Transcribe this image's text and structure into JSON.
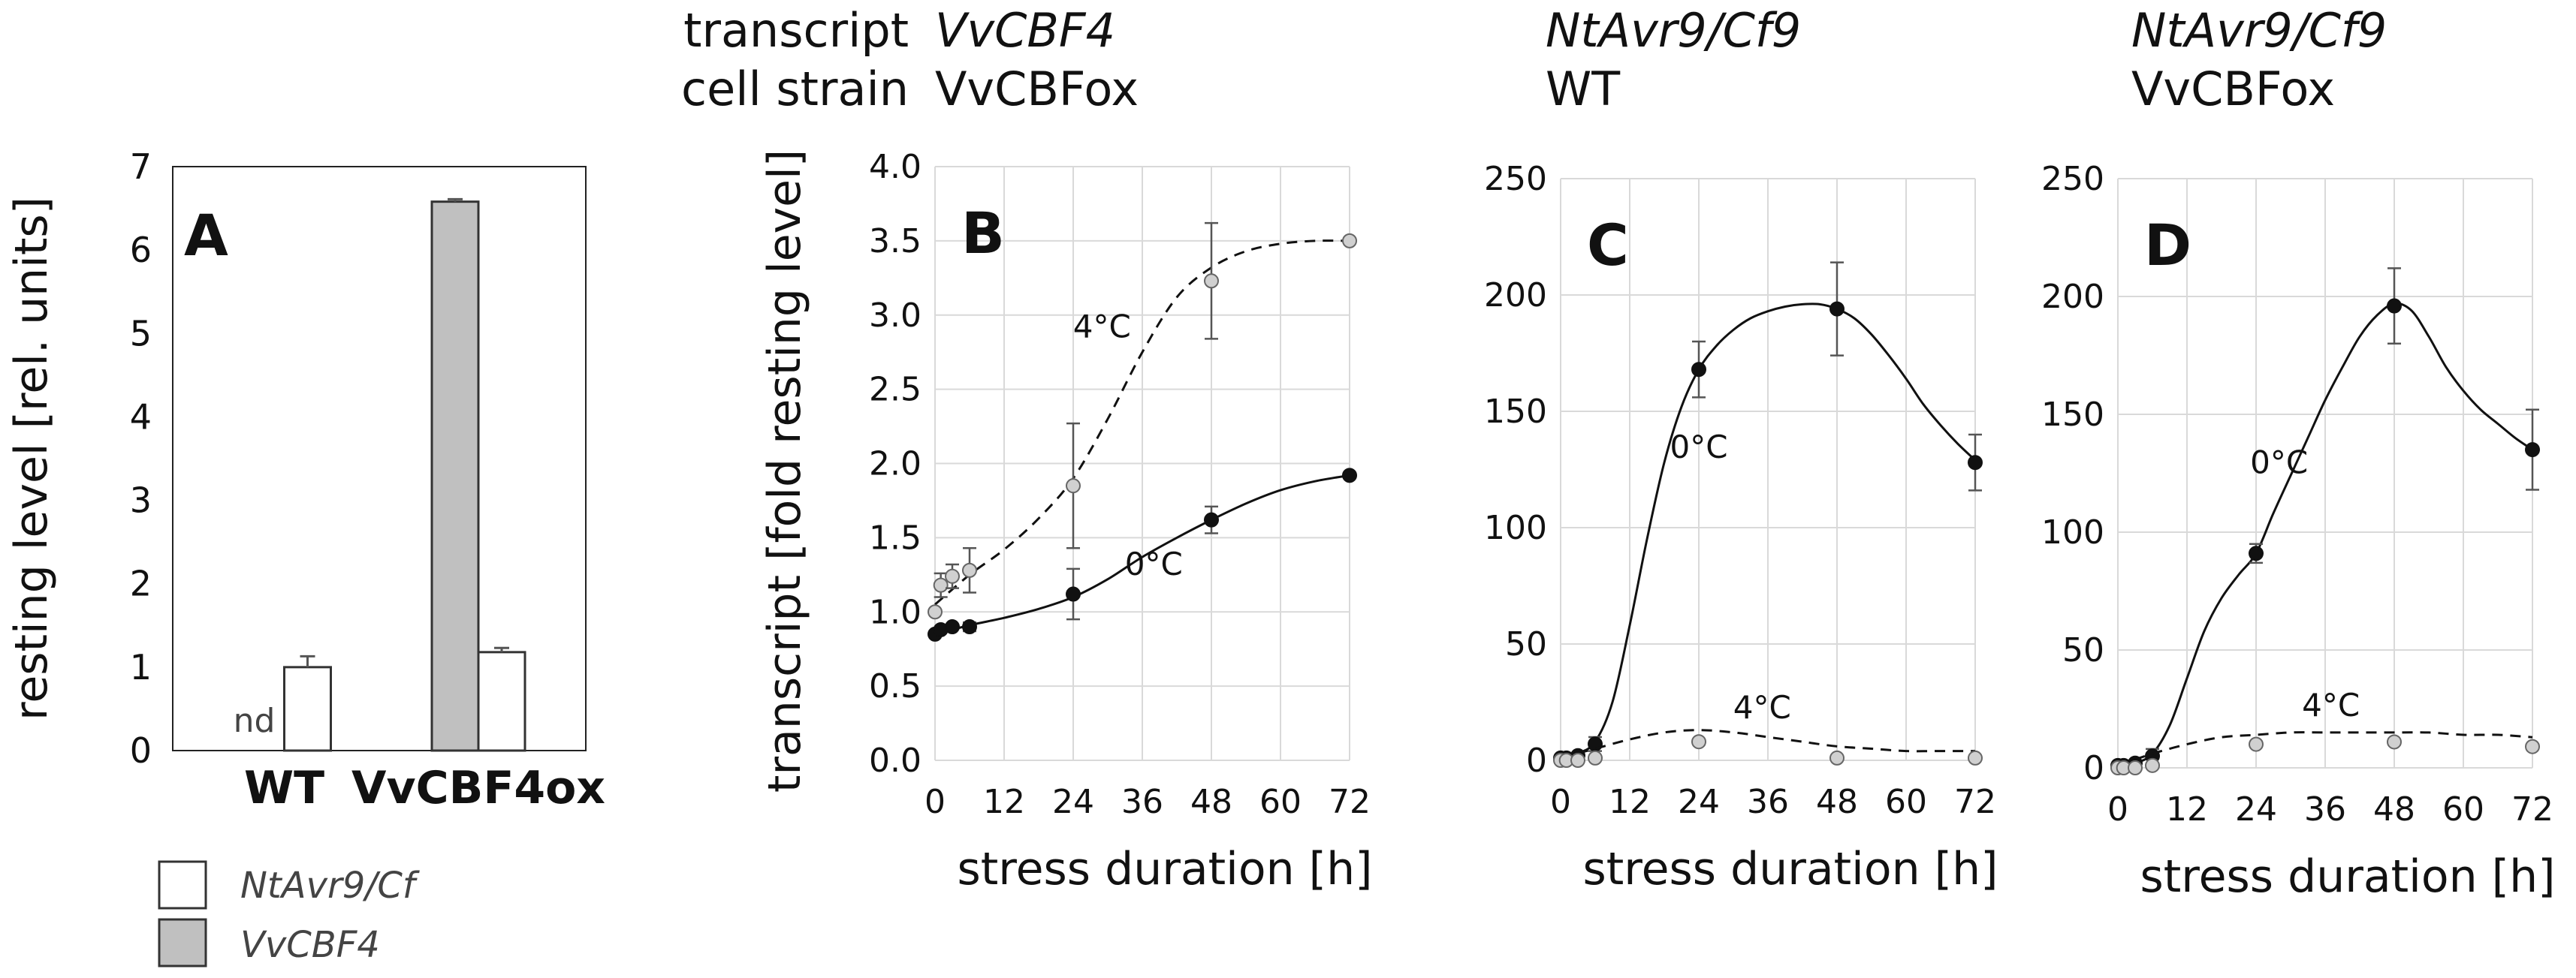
{
  "colors": {
    "filled_marker": "#111111",
    "open_marker": "#d0d0d0",
    "bar_gray": "#c0c0c0",
    "bar_white": "#ffffff",
    "grid": "#d9d9d9"
  },
  "header": {
    "row1_label": "transcript",
    "row2_label": "cell strain",
    "B_transcript": "VvCBF4",
    "B_strain": "VvCBFox",
    "C_transcript": "NtAvr9/Cf9",
    "C_strain": "WT",
    "D_transcript": "NtAvr9/Cf9",
    "D_strain": "VvCBFox"
  },
  "legend": {
    "white_label": "NtAvr9/Cf",
    "gray_label": "VvCBF4"
  },
  "chart_data": [
    {
      "id": "A",
      "type": "bar",
      "panel_label": "A",
      "ylabel": "resting level [rel. units]",
      "ylim": [
        0,
        7
      ],
      "yticks": [
        "0",
        "1",
        "2",
        "3",
        "4",
        "5",
        "6",
        "7"
      ],
      "categories": [
        "WT",
        "VvCBF4ox"
      ],
      "series": [
        {
          "name": "VvCBF4",
          "values": [
            null,
            6.58
          ],
          "errors": [
            0,
            0.03
          ]
        },
        {
          "name": "NtAvr9/Cf",
          "values": [
            1.0,
            1.18
          ],
          "errors": [
            0.13,
            0.05
          ]
        }
      ],
      "annotation": "nd"
    },
    {
      "id": "B",
      "type": "line",
      "panel_label": "B",
      "ylabel": "transcript [fold resting level]",
      "xlabel": "stress duration [h]",
      "xlim": [
        0,
        72
      ],
      "ylim": [
        0,
        4
      ],
      "xticks": [
        "0",
        "12",
        "24",
        "36",
        "48",
        "60",
        "72"
      ],
      "yticks": [
        "0.0",
        "0.5",
        "1.0",
        "1.5",
        "2.0",
        "2.5",
        "3.0",
        "3.5",
        "4.0"
      ],
      "series": [
        {
          "name": "4°C",
          "style": "dashed",
          "marker": "open",
          "x": [
            0,
            1,
            3,
            6,
            24,
            48,
            72
          ],
          "y": [
            1.0,
            1.18,
            1.24,
            1.28,
            1.85,
            3.23,
            3.5
          ],
          "err": [
            0,
            0.08,
            0.08,
            0.15,
            0.42,
            0.39,
            0
          ],
          "curve_x": [
            0,
            6,
            12,
            18,
            24,
            30,
            36,
            42,
            48,
            54,
            60,
            66,
            72
          ],
          "curve_y": [
            1.05,
            1.25,
            1.42,
            1.63,
            1.9,
            2.3,
            2.75,
            3.12,
            3.32,
            3.43,
            3.48,
            3.5,
            3.5
          ]
        },
        {
          "name": "0°C",
          "style": "solid",
          "marker": "filled",
          "x": [
            0,
            1,
            3,
            6,
            24,
            48,
            72
          ],
          "y": [
            0.85,
            0.88,
            0.9,
            0.9,
            1.12,
            1.62,
            1.92
          ],
          "err": [
            0,
            0,
            0,
            0.03,
            0.17,
            0.09,
            0
          ],
          "curve_x": [
            0,
            6,
            12,
            18,
            24,
            30,
            36,
            42,
            48,
            54,
            60,
            66,
            72
          ],
          "curve_y": [
            0.85,
            0.91,
            0.96,
            1.02,
            1.1,
            1.22,
            1.37,
            1.5,
            1.62,
            1.73,
            1.82,
            1.88,
            1.92
          ]
        }
      ],
      "annotations": [
        {
          "text": "4°C",
          "x": 29,
          "y": 2.85
        },
        {
          "text": "0°C",
          "x": 38,
          "y": 1.25
        }
      ]
    },
    {
      "id": "C",
      "type": "line",
      "panel_label": "C",
      "xlabel": "stress duration [h]",
      "xlim": [
        0,
        72
      ],
      "ylim": [
        0,
        250
      ],
      "xticks": [
        "0",
        "12",
        "24",
        "36",
        "48",
        "60",
        "72"
      ],
      "yticks": [
        "0",
        "50",
        "100",
        "150",
        "200",
        "250"
      ],
      "series": [
        {
          "name": "0°C",
          "style": "solid",
          "marker": "filled",
          "x": [
            0,
            1,
            3,
            6,
            24,
            48,
            72
          ],
          "y": [
            1,
            1,
            2,
            7,
            168,
            194,
            128
          ],
          "err": [
            0,
            0,
            0,
            3,
            12,
            20,
            12
          ],
          "curve_x": [
            0,
            3,
            6,
            9,
            12,
            15,
            18,
            21,
            24,
            27,
            30,
            33,
            36,
            39,
            42,
            45,
            48,
            51,
            54,
            57,
            60,
            63,
            66,
            69,
            72
          ],
          "curve_y": [
            1,
            3,
            8,
            25,
            58,
            95,
            128,
            152,
            168,
            178,
            185,
            190,
            193,
            195,
            196,
            196,
            194,
            190,
            183,
            174,
            164,
            153,
            144,
            136,
            129
          ]
        },
        {
          "name": "4°C",
          "style": "dashed",
          "marker": "open",
          "x": [
            0,
            1,
            3,
            6,
            24,
            48,
            72
          ],
          "y": [
            0,
            0,
            0,
            1,
            8,
            1,
            1
          ],
          "err": [
            0,
            0,
            0,
            0,
            0,
            0,
            0
          ],
          "curve_x": [
            0,
            6,
            12,
            18,
            24,
            30,
            36,
            42,
            48,
            54,
            60,
            66,
            72
          ],
          "curve_y": [
            1,
            5,
            9,
            12,
            13,
            12,
            10,
            8,
            6,
            5,
            4,
            4,
            4
          ]
        }
      ],
      "annotations": [
        {
          "text": "0°C",
          "x": 24,
          "y": 130
        },
        {
          "text": "4°C",
          "x": 35,
          "y": 18
        }
      ]
    },
    {
      "id": "D",
      "type": "line",
      "panel_label": "D",
      "xlabel": "stress duration [h]",
      "xlim": [
        0,
        72
      ],
      "ylim": [
        0,
        250
      ],
      "xticks": [
        "0",
        "12",
        "24",
        "36",
        "48",
        "60",
        "72"
      ],
      "yticks": [
        "0",
        "50",
        "100",
        "150",
        "200",
        "250"
      ],
      "series": [
        {
          "name": "0°C",
          "style": "solid",
          "marker": "filled",
          "x": [
            0,
            1,
            3,
            6,
            24,
            48,
            72
          ],
          "y": [
            1,
            1,
            2,
            5,
            91,
            196,
            135
          ],
          "err": [
            0,
            0,
            0,
            3,
            4,
            16,
            17
          ],
          "curve_x": [
            0,
            3,
            6,
            9,
            12,
            15,
            18,
            21,
            24,
            27,
            30,
            33,
            36,
            39,
            42,
            45,
            48,
            51,
            54,
            57,
            60,
            63,
            66,
            69,
            72
          ],
          "curve_y": [
            1,
            2,
            6,
            18,
            38,
            58,
            72,
            82,
            91,
            108,
            124,
            140,
            156,
            170,
            183,
            192,
            197,
            194,
            183,
            170,
            160,
            152,
            146,
            140,
            135
          ]
        },
        {
          "name": "4°C",
          "style": "dashed",
          "marker": "open",
          "x": [
            0,
            1,
            3,
            6,
            24,
            48,
            72
          ],
          "y": [
            0,
            0,
            0,
            1,
            10,
            11,
            9
          ],
          "err": [
            0,
            0,
            0,
            0,
            0,
            0,
            0
          ],
          "curve_x": [
            0,
            6,
            12,
            18,
            24,
            30,
            36,
            42,
            48,
            54,
            60,
            66,
            72
          ],
          "curve_y": [
            1,
            6,
            10,
            13,
            14,
            15,
            15,
            15,
            15,
            15,
            14,
            14,
            13
          ]
        }
      ],
      "annotations": [
        {
          "text": "0°C",
          "x": 28,
          "y": 125
        },
        {
          "text": "4°C",
          "x": 37,
          "y": 22
        }
      ]
    }
  ]
}
